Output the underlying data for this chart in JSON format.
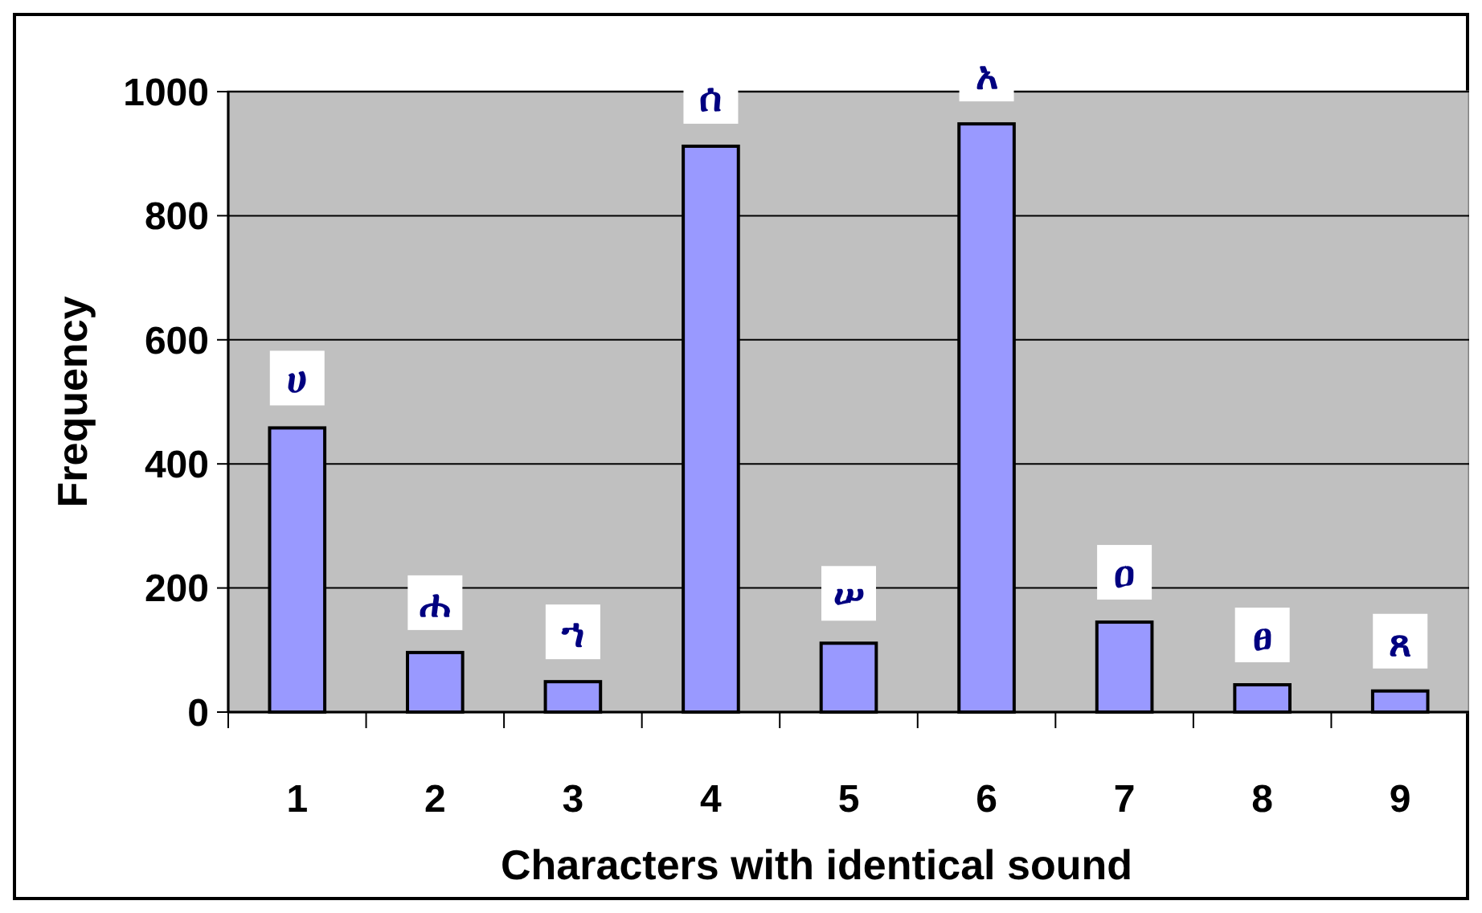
{
  "chart_data": {
    "type": "bar",
    "xlabel": "Characters with identical sound",
    "ylabel": "Frequency",
    "categories": [
      "1",
      "2",
      "3",
      "4",
      "5",
      "6",
      "7",
      "8",
      "9"
    ],
    "values": [
      458,
      96,
      49,
      912,
      111,
      948,
      145,
      44,
      34
    ],
    "color": "#9999ff",
    "ylim": [
      0,
      1000
    ],
    "yticks": [
      0,
      200,
      400,
      600,
      800,
      1000
    ],
    "grid": "y",
    "annotations": [
      {
        "text": "ሀ",
        "x": "1",
        "y": 458
      },
      {
        "text": "ሐ",
        "x": "2",
        "y": 96
      },
      {
        "text": "ኀ",
        "x": "3",
        "y": 49
      },
      {
        "text": "ሰ",
        "x": "4",
        "y": 912
      },
      {
        "text": "ሠ",
        "x": "5",
        "y": 111
      },
      {
        "text": "አ",
        "x": "6",
        "y": 948
      },
      {
        "text": "ዐ",
        "x": "7",
        "y": 145
      },
      {
        "text": "ፀ",
        "x": "8",
        "y": 44
      },
      {
        "text": "ጸ",
        "x": "9",
        "y": 34
      }
    ]
  }
}
